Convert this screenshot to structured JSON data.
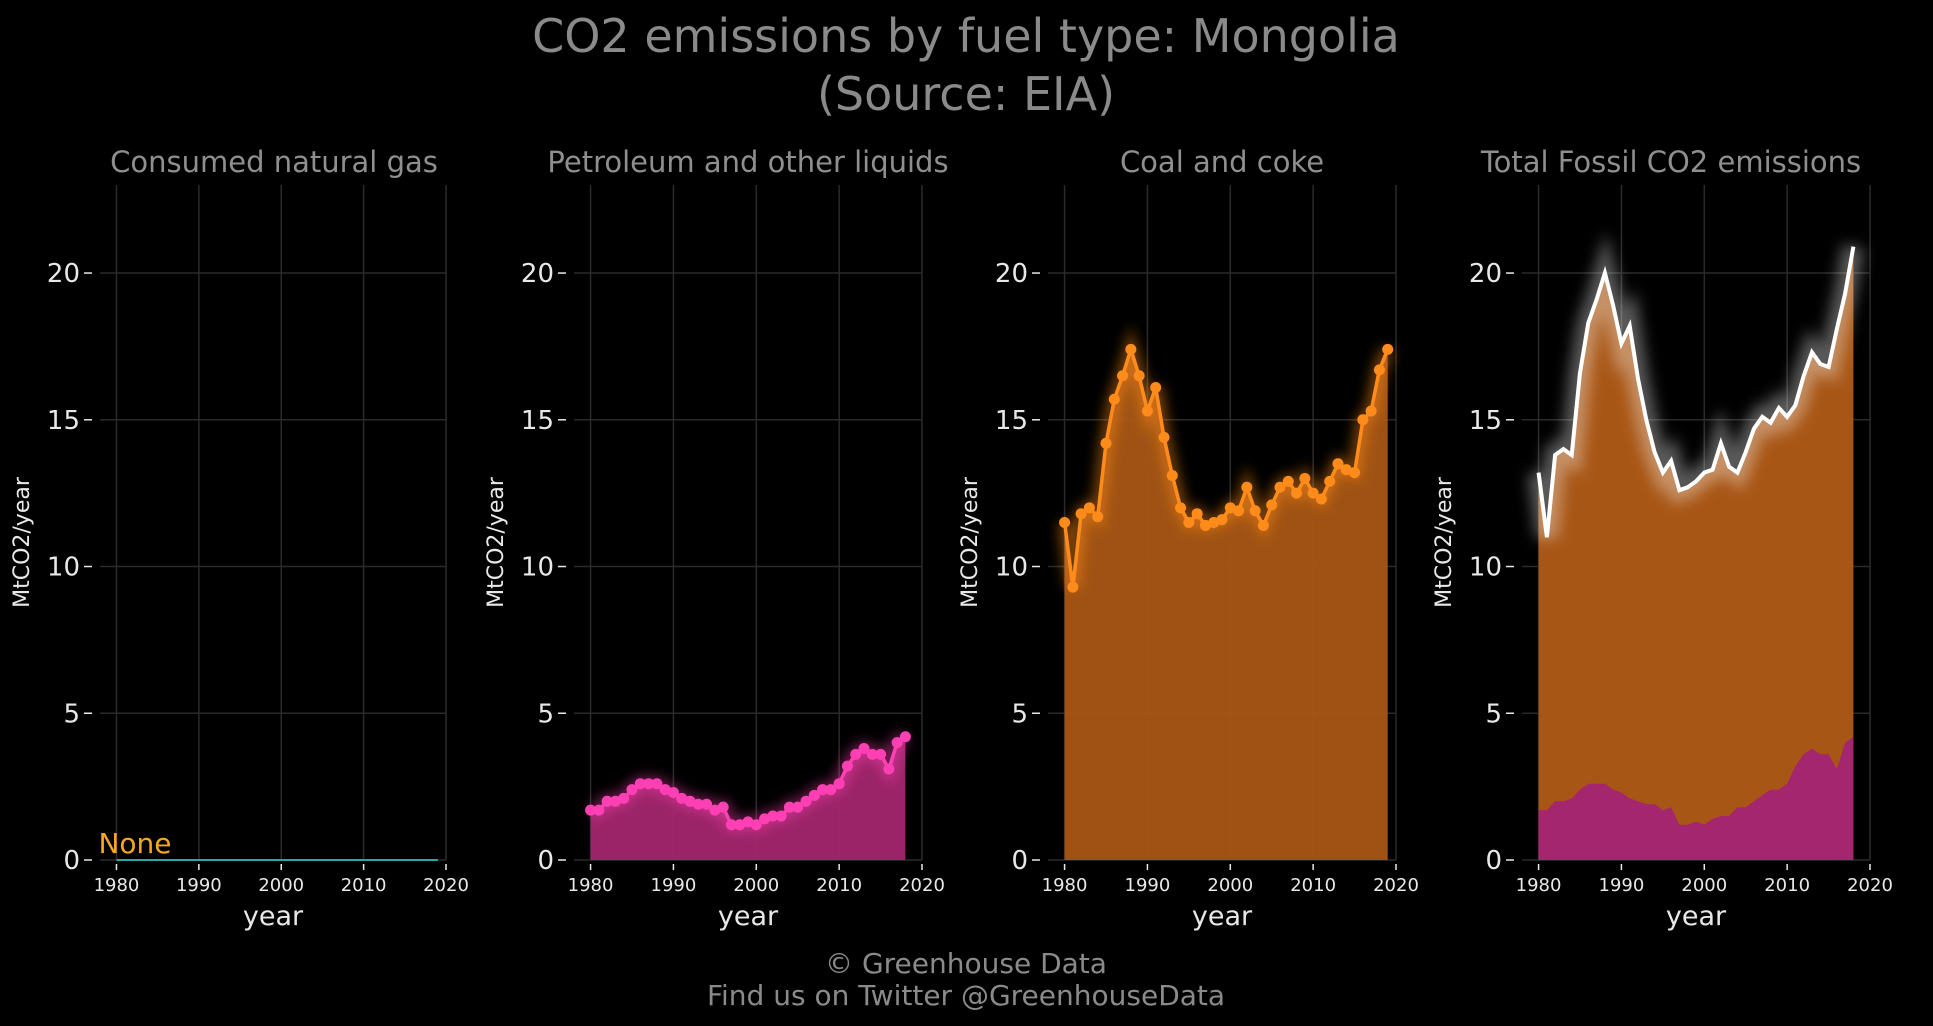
{
  "title_line1": "CO2 emissions by fuel type: Mongolia",
  "title_line2": "(Source: EIA)",
  "credit_line1": "© Greenhouse Data",
  "credit_line2": "Find us on Twitter @GreenhouseData",
  "colors": {
    "gas": "#2aa8a8",
    "petroleum": "#ff3fb4",
    "petroleum_fill": "#a3266e",
    "coal": "#ff8c1a",
    "coal_fill": "#a85615",
    "total": "#ffffff"
  },
  "chart_data": [
    {
      "type": "line",
      "title": "Consumed natural gas",
      "xlabel": "year",
      "ylabel": "MtCO2/year",
      "xlim": [
        1978,
        2020
      ],
      "ylim": [
        0,
        23
      ],
      "x_ticks": [
        1980,
        1990,
        2000,
        2010,
        2020
      ],
      "y_ticks": [
        0,
        5,
        10,
        15,
        20
      ],
      "annotation": "None",
      "series": [
        {
          "x": [
            1980,
            2019
          ],
          "values": [
            0,
            0
          ]
        }
      ]
    },
    {
      "type": "area",
      "title": "Petroleum and other liquids",
      "xlabel": "year",
      "ylabel": "MtCO2/year",
      "xlim": [
        1978,
        2020
      ],
      "ylim": [
        0,
        23
      ],
      "x_ticks": [
        1980,
        1990,
        2000,
        2010,
        2020
      ],
      "y_ticks": [
        0,
        5,
        10,
        15,
        20
      ],
      "series": [
        {
          "x": [
            1980,
            1981,
            1982,
            1983,
            1984,
            1985,
            1986,
            1987,
            1988,
            1989,
            1990,
            1991,
            1992,
            1993,
            1994,
            1995,
            1996,
            1997,
            1998,
            1999,
            2000,
            2001,
            2002,
            2003,
            2004,
            2005,
            2006,
            2007,
            2008,
            2009,
            2010,
            2011,
            2012,
            2013,
            2014,
            2015,
            2016,
            2017,
            2018
          ],
          "values": [
            1.7,
            1.7,
            2.0,
            2.0,
            2.1,
            2.4,
            2.6,
            2.6,
            2.6,
            2.4,
            2.3,
            2.1,
            2.0,
            1.9,
            1.9,
            1.7,
            1.8,
            1.2,
            1.2,
            1.3,
            1.2,
            1.4,
            1.5,
            1.5,
            1.8,
            1.8,
            2.0,
            2.2,
            2.4,
            2.4,
            2.6,
            3.2,
            3.6,
            3.8,
            3.6,
            3.6,
            3.1,
            4.0,
            4.2
          ]
        }
      ]
    },
    {
      "type": "area",
      "title": "Coal and coke",
      "xlabel": "year",
      "ylabel": "MtCO2/year",
      "xlim": [
        1978,
        2020
      ],
      "ylim": [
        0,
        23
      ],
      "x_ticks": [
        1980,
        1990,
        2000,
        2010,
        2020
      ],
      "y_ticks": [
        0,
        5,
        10,
        15,
        20
      ],
      "series": [
        {
          "x": [
            1980,
            1981,
            1982,
            1983,
            1984,
            1985,
            1986,
            1987,
            1988,
            1989,
            1990,
            1991,
            1992,
            1993,
            1994,
            1995,
            1996,
            1997,
            1998,
            1999,
            2000,
            2001,
            2002,
            2003,
            2004,
            2005,
            2006,
            2007,
            2008,
            2009,
            2010,
            2011,
            2012,
            2013,
            2014,
            2015,
            2016,
            2017,
            2018,
            2019
          ],
          "values": [
            11.5,
            9.3,
            11.8,
            12.0,
            11.7,
            14.2,
            15.7,
            16.5,
            17.4,
            16.5,
            15.3,
            16.1,
            14.4,
            13.1,
            12.0,
            11.5,
            11.8,
            11.4,
            11.5,
            11.6,
            12.0,
            11.9,
            12.7,
            11.9,
            11.4,
            12.1,
            12.7,
            12.9,
            12.5,
            13.0,
            12.5,
            12.3,
            12.9,
            13.5,
            13.3,
            13.2,
            15.0,
            15.3,
            16.7,
            17.4
          ]
        }
      ]
    },
    {
      "type": "area",
      "title": "Total Fossil CO2 emissions",
      "xlabel": "year",
      "ylabel": "MtCO2/year",
      "xlim": [
        1978,
        2020
      ],
      "ylim": [
        0,
        23
      ],
      "x_ticks": [
        1980,
        1990,
        2000,
        2010,
        2020
      ],
      "y_ticks": [
        0,
        5,
        10,
        15,
        20
      ],
      "series": [
        {
          "name": "total",
          "x": [
            1980,
            1981,
            1982,
            1983,
            1984,
            1985,
            1986,
            1987,
            1988,
            1989,
            1990,
            1991,
            1992,
            1993,
            1994,
            1995,
            1996,
            1997,
            1998,
            1999,
            2000,
            2001,
            2002,
            2003,
            2004,
            2005,
            2006,
            2007,
            2008,
            2009,
            2010,
            2011,
            2012,
            2013,
            2014,
            2015,
            2016,
            2017,
            2018
          ],
          "values": [
            13.2,
            11.0,
            13.8,
            14.0,
            13.8,
            16.6,
            18.3,
            19.1,
            20.0,
            18.9,
            17.6,
            18.2,
            16.4,
            15.0,
            13.9,
            13.2,
            13.6,
            12.6,
            12.7,
            12.9,
            13.2,
            13.3,
            14.2,
            13.4,
            13.2,
            13.9,
            14.7,
            15.1,
            14.9,
            15.4,
            15.1,
            15.5,
            16.5,
            17.3,
            16.9,
            16.8,
            18.1,
            19.3,
            20.9
          ]
        }
      ]
    }
  ]
}
